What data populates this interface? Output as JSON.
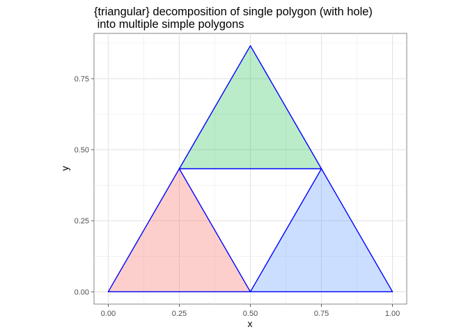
{
  "chart_data": {
    "type": "polygon",
    "title": [
      "{triangular} decomposition of single polygon (with hole)",
      " into multiple simple polygons"
    ],
    "xlabel": "x",
    "ylabel": "y",
    "xlim": [
      -0.05,
      1.05
    ],
    "ylim": [
      -0.0433,
      0.9093
    ],
    "x_ticks": [
      0.0,
      0.25,
      0.5,
      0.75,
      1.0
    ],
    "x_tick_labels": [
      "0.00",
      "0.25",
      "0.50",
      "0.75",
      "1.00"
    ],
    "y_ticks": [
      0.0,
      0.25,
      0.5,
      0.75
    ],
    "y_tick_labels": [
      "0.00",
      "0.25",
      "0.50",
      "0.75"
    ],
    "grid": true,
    "outline_color": "#0000ff",
    "polygons": [
      {
        "fill": "#f8766d",
        "alpha": 0.35,
        "points": [
          [
            0.0,
            0.0
          ],
          [
            0.5,
            0.0
          ],
          [
            0.25,
            0.433
          ]
        ]
      },
      {
        "fill": "#00ba38",
        "alpha": 0.27,
        "points": [
          [
            0.25,
            0.433
          ],
          [
            0.75,
            0.433
          ],
          [
            0.5,
            0.866
          ]
        ]
      },
      {
        "fill": "#619cff",
        "alpha": 0.33,
        "points": [
          [
            0.5,
            0.0
          ],
          [
            1.0,
            0.0
          ],
          [
            0.75,
            0.433
          ]
        ]
      }
    ]
  }
}
